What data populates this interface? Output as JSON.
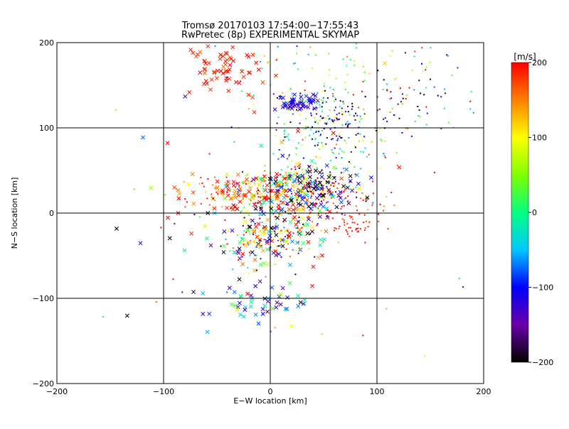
{
  "chart_data": {
    "type": "scatter",
    "title": "Tromsø 20170103 17:54:00−17:55:43",
    "subtitle": "RwPretec (8p) EXPERIMENTAL SKYMAP",
    "xlabel": "E−W location [km]",
    "ylabel": "N−S location [km]",
    "xlim": [
      -200,
      200
    ],
    "ylim": [
      -200,
      200
    ],
    "xticks": [
      -200,
      -100,
      0,
      100,
      200
    ],
    "yticks": [
      -200,
      -100,
      0,
      100,
      200
    ],
    "xtick_labels": [
      "−200",
      "−100",
      "0",
      "100",
      "200"
    ],
    "ytick_labels": [
      "−200",
      "−100",
      "0",
      "100",
      "200"
    ],
    "grid": true,
    "marker_types": [
      "x",
      "dot"
    ],
    "colorbar": {
      "label": "[m/s]",
      "min": -200,
      "max": 200,
      "ticks": [
        200,
        100,
        0,
        -100,
        -200
      ],
      "tick_labels": [
        "200",
        "100",
        "0",
        "−100",
        "−200"
      ],
      "colormap": [
        "#000000",
        "#6a00a8",
        "#0000ff",
        "#00c8ff",
        "#00ff80",
        "#80ff00",
        "#ffff00",
        "#ff8000",
        "#ff0000"
      ]
    },
    "clusters": [
      {
        "cx": -40,
        "cy": 170,
        "sx": 22,
        "sy": 18,
        "n": 70,
        "v": 190,
        "vs": 15,
        "marker": "x"
      },
      {
        "cx": 15,
        "cy": 28,
        "sx": 25,
        "sy": 15,
        "n": 260,
        "v": 60,
        "vs": 150,
        "marker": "mixed"
      },
      {
        "cx": 40,
        "cy": 30,
        "sx": 22,
        "sy": 14,
        "n": 120,
        "v": -150,
        "vs": 60,
        "marker": "mixed"
      },
      {
        "cx": -30,
        "cy": 25,
        "sx": 25,
        "sy": 12,
        "n": 100,
        "v": 170,
        "vs": 40,
        "marker": "mixed"
      },
      {
        "cx": 0,
        "cy": -25,
        "sx": 28,
        "sy": 14,
        "n": 200,
        "v": 0,
        "vs": 170,
        "marker": "mixed"
      },
      {
        "cx": 80,
        "cy": -15,
        "sx": 12,
        "sy": 8,
        "n": 40,
        "v": 190,
        "vs": 15,
        "marker": "dot"
      },
      {
        "cx": 60,
        "cy": 15,
        "sx": 25,
        "sy": 18,
        "n": 80,
        "v": 180,
        "vs": 25,
        "marker": "dot"
      },
      {
        "cx": 50,
        "cy": 90,
        "sx": 30,
        "sy": 25,
        "n": 160,
        "v": 20,
        "vs": 80,
        "marker": "dot"
      },
      {
        "cx": 60,
        "cy": 110,
        "sx": 30,
        "sy": 15,
        "n": 80,
        "v": -170,
        "vs": 30,
        "marker": "dot"
      },
      {
        "cx": 25,
        "cy": 128,
        "sx": 10,
        "sy": 6,
        "n": 50,
        "v": -115,
        "vs": 12,
        "marker": "x"
      },
      {
        "cx": 120,
        "cy": 150,
        "sx": 40,
        "sy": 35,
        "n": 100,
        "v": 0,
        "vs": 160,
        "marker": "dot"
      },
      {
        "cx": -15,
        "cy": -105,
        "sx": 25,
        "sy": 12,
        "n": 50,
        "v": -80,
        "vs": 70,
        "marker": "x"
      },
      {
        "cx": -10,
        "cy": -50,
        "sx": 20,
        "sy": 12,
        "n": 25,
        "v": 0,
        "vs": 150,
        "marker": "mixed"
      },
      {
        "cx": 20,
        "cy": 165,
        "sx": 45,
        "sy": 30,
        "n": 60,
        "v": 30,
        "vs": 90,
        "marker": "dot"
      },
      {
        "cx": 0,
        "cy": 0,
        "sx": 120,
        "sy": 110,
        "n": 90,
        "v": 0,
        "vs": 180,
        "marker": "mixed"
      }
    ]
  }
}
